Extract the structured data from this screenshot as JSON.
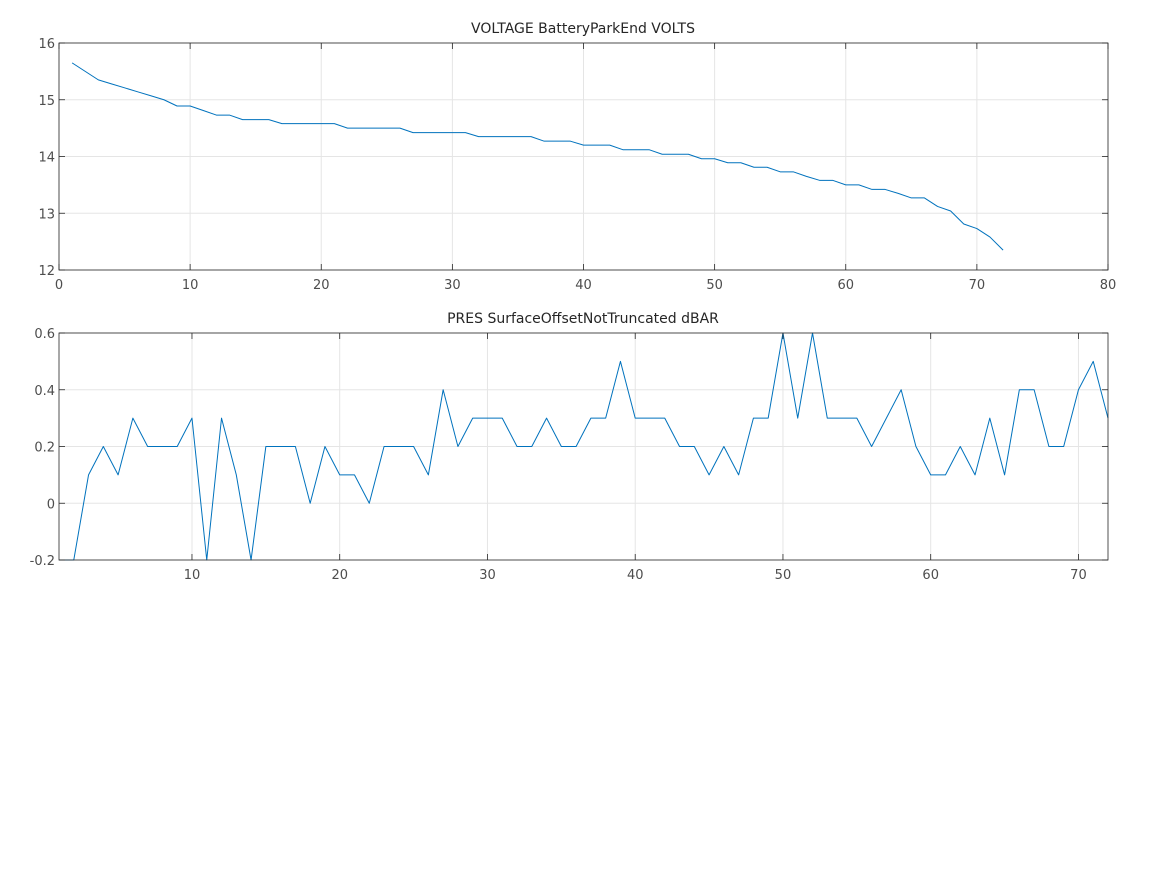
{
  "colors": {
    "series": "#0072bd",
    "grid": "#e5e5e5",
    "axes": "#262626",
    "tick_text": "#4d4d4d"
  },
  "chart_data": [
    {
      "type": "line",
      "title": "VOLTAGE BatteryParkEnd VOLTS",
      "xlabel": "",
      "ylabel": "",
      "xlim": [
        0,
        80
      ],
      "ylim": [
        12,
        16
      ],
      "xticks": [
        0,
        10,
        20,
        30,
        40,
        50,
        60,
        70,
        80
      ],
      "yticks": [
        12,
        13,
        14,
        15,
        16
      ],
      "grid": true,
      "series": [
        {
          "x": [
            1,
            2,
            3,
            4,
            5,
            6,
            7,
            8,
            9,
            10,
            11,
            12,
            13,
            14,
            15,
            16,
            17,
            18,
            19,
            20,
            21,
            22,
            23,
            24,
            25,
            26,
            27,
            28,
            29,
            30,
            31,
            32,
            33,
            34,
            35,
            36,
            37,
            38,
            39,
            40,
            41,
            42,
            43,
            44,
            45,
            46,
            47,
            48,
            49,
            50,
            51,
            52,
            53,
            54,
            55,
            56,
            57,
            58,
            59,
            60,
            61,
            62,
            63,
            64,
            65,
            66,
            67,
            68,
            69,
            70,
            71,
            72
          ],
          "y": [
            15.65,
            15.5,
            15.35,
            15.28,
            15.21,
            15.14,
            15.07,
            15.0,
            14.89,
            14.89,
            14.81,
            14.73,
            14.73,
            14.65,
            14.65,
            14.65,
            14.58,
            14.58,
            14.58,
            14.58,
            14.58,
            14.5,
            14.5,
            14.5,
            14.5,
            14.5,
            14.42,
            14.42,
            14.42,
            14.42,
            14.42,
            14.35,
            14.35,
            14.35,
            14.35,
            14.35,
            14.27,
            14.27,
            14.27,
            14.2,
            14.2,
            14.2,
            14.12,
            14.12,
            14.12,
            14.04,
            14.04,
            14.04,
            13.96,
            13.96,
            13.89,
            13.89,
            13.81,
            13.81,
            13.73,
            13.73,
            13.65,
            13.58,
            13.58,
            13.5,
            13.5,
            13.42,
            13.42,
            13.35,
            13.27,
            13.27,
            13.12,
            13.04,
            12.81,
            12.73,
            12.58,
            12.35
          ]
        }
      ]
    },
    {
      "type": "line",
      "title": "PRES SurfaceOffsetNotTruncated dBAR",
      "xlabel": "",
      "ylabel": "",
      "xlim": [
        1,
        72
      ],
      "ylim": [
        -0.2,
        0.6
      ],
      "xticks": [
        10,
        20,
        30,
        40,
        50,
        60,
        70
      ],
      "yticks": [
        -0.2,
        0,
        0.2,
        0.4,
        0.6
      ],
      "grid": true,
      "series": [
        {
          "x": [
            1,
            2,
            3,
            4,
            5,
            6,
            7,
            8,
            9,
            10,
            11,
            12,
            13,
            14,
            15,
            16,
            17,
            18,
            19,
            20,
            21,
            22,
            23,
            24,
            25,
            26,
            27,
            28,
            29,
            30,
            31,
            32,
            33,
            34,
            35,
            36,
            37,
            38,
            39,
            40,
            41,
            42,
            43,
            44,
            45,
            46,
            47,
            48,
            49,
            50,
            51,
            52,
            53,
            54,
            55,
            56,
            57,
            58,
            59,
            60,
            61,
            62,
            63,
            64,
            65,
            66,
            67,
            68,
            69,
            70,
            71,
            72
          ],
          "y": [
            -0.2,
            -0.2,
            0.1,
            0.2,
            0.1,
            0.3,
            0.2,
            0.2,
            0.2,
            0.3,
            -0.2,
            0.3,
            0.1,
            -0.2,
            0.2,
            0.2,
            0.2,
            0,
            0.2,
            0.1,
            0.1,
            0,
            0.2,
            0.2,
            0.2,
            0.1,
            0.4,
            0.2,
            0.3,
            0.3,
            0.3,
            0.2,
            0.2,
            0.3,
            0.2,
            0.2,
            0.3,
            0.3,
            0.5,
            0.3,
            0.3,
            0.3,
            0.2,
            0.2,
            0.1,
            0.2,
            0.1,
            0.3,
            0.3,
            0.6,
            0.3,
            0.6,
            0.3,
            0.3,
            0.3,
            0.2,
            0.3,
            0.4,
            0.2,
            0.1,
            0.1,
            0.2,
            0.1,
            0.3,
            0.1,
            0.4,
            0.4,
            0.2,
            0.2,
            0.4,
            0.5,
            0.3
          ]
        }
      ]
    }
  ]
}
